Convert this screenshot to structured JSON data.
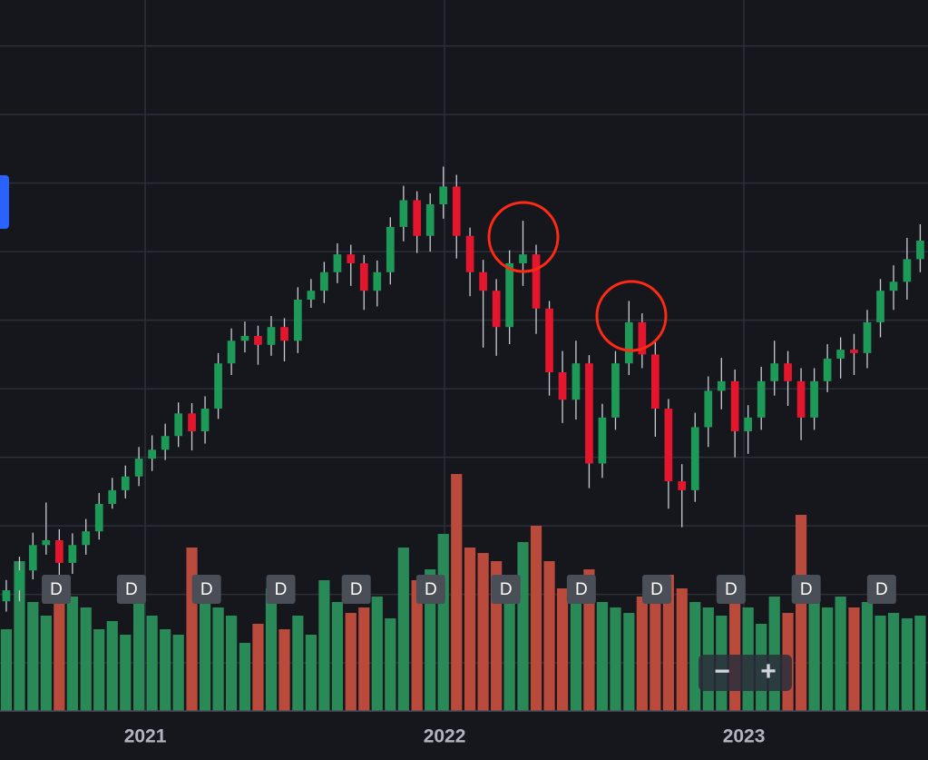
{
  "chart_data": {
    "type": "candlestick",
    "x": [
      2020.536,
      2020.58,
      2020.625,
      2020.669,
      2020.713,
      2020.757,
      2020.802,
      2020.846,
      2020.89,
      2020.934,
      2020.979,
      2021.023,
      2021.067,
      2021.111,
      2021.156,
      2021.2,
      2021.244,
      2021.288,
      2021.333,
      2021.377,
      2021.421,
      2021.465,
      2021.51,
      2021.554,
      2021.598,
      2021.642,
      2021.687,
      2021.731,
      2021.775,
      2021.819,
      2021.863,
      2021.908,
      2021.952,
      2021.996,
      2022.04,
      2022.085,
      2022.129,
      2022.173,
      2022.217,
      2022.262,
      2022.306,
      2022.35,
      2022.394,
      2022.439,
      2022.483,
      2022.527,
      2022.571,
      2022.616,
      2022.66,
      2022.704,
      2022.748,
      2022.793,
      2022.837,
      2022.881,
      2022.925,
      2022.97,
      2023.014,
      2023.058,
      2023.102,
      2023.147,
      2023.191,
      2023.235,
      2023.279,
      2023.323,
      2023.368,
      2023.412,
      2023.456,
      2023.5,
      2023.545,
      2023.589
    ],
    "open": [
      9.0,
      10.6,
      13.5,
      17.2,
      17.9,
      14.6,
      17.2,
      19.2,
      23.2,
      25.2,
      27.2,
      29.8,
      31.1,
      33.1,
      36.4,
      33.8,
      37.1,
      43.7,
      47.0,
      47.7,
      46.4,
      49.0,
      47.0,
      53.0,
      54.3,
      57.0,
      59.6,
      58.3,
      54.3,
      57.0,
      63.6,
      67.5,
      62.3,
      66.9,
      69.5,
      62.3,
      57.0,
      54.3,
      49.0,
      58.3,
      59.6,
      51.7,
      42.4,
      38.4,
      43.7,
      29.1,
      35.8,
      43.7,
      49.7,
      45.0,
      37.1,
      26.5,
      25.2,
      34.4,
      39.7,
      41.1,
      33.8,
      35.8,
      41.1,
      43.7,
      41.1,
      35.8,
      41.1,
      44.4,
      45.7,
      45.2,
      49.7,
      54.3,
      55.6,
      58.9
    ],
    "high": [
      12.1,
      15.5,
      19.0,
      23.4,
      19.5,
      18.9,
      21.0,
      24.8,
      27.0,
      28.8,
      31.5,
      33.2,
      34.9,
      38.0,
      37.9,
      38.9,
      45.2,
      48.8,
      49.8,
      49.2,
      50.6,
      50.3,
      54.8,
      56.0,
      58.5,
      61.2,
      61.0,
      59.5,
      58.7,
      65.0,
      69.6,
      68.8,
      68.5,
      72.4,
      71.2,
      63.5,
      58.8,
      56.0,
      60.2,
      64.5,
      61.0,
      52.8,
      45.5,
      47.0,
      44.9,
      37.8,
      45.5,
      52.8,
      51.0,
      46.8,
      38.5,
      29.0,
      36.5,
      41.8,
      44.5,
      42.8,
      37.6,
      43.2,
      47.0,
      45.5,
      43.0,
      43.0,
      46.5,
      47.5,
      48.0,
      51.5,
      56.0,
      58.0,
      62.0,
      64.0
    ],
    "low": [
      7.5,
      9.0,
      12.2,
      15.8,
      10.5,
      13.0,
      15.8,
      18.0,
      22.5,
      24.0,
      25.8,
      28.0,
      29.6,
      31.5,
      31.0,
      32.0,
      35.6,
      42.0,
      45.3,
      43.5,
      44.8,
      44.0,
      45.2,
      51.8,
      52.5,
      55.4,
      55.0,
      51.5,
      52.0,
      55.2,
      61.5,
      59.8,
      60.0,
      64.8,
      59.0,
      53.5,
      46.0,
      44.8,
      46.5,
      55.0,
      48.0,
      39.0,
      35.0,
      35.5,
      25.5,
      27.0,
      34.0,
      42.0,
      43.0,
      33.0,
      22.5,
      19.8,
      23.5,
      31.5,
      37.0,
      30.0,
      30.5,
      34.0,
      39.0,
      37.5,
      32.5,
      34.0,
      39.5,
      41.5,
      42.0,
      43.0,
      47.5,
      51.5,
      53.0,
      57.0
    ],
    "close": [
      10.6,
      13.5,
      17.2,
      17.9,
      14.6,
      17.2,
      19.2,
      23.2,
      25.2,
      27.2,
      29.8,
      31.1,
      33.1,
      36.4,
      33.8,
      37.1,
      43.7,
      47.0,
      47.7,
      46.4,
      49.0,
      47.0,
      53.0,
      54.3,
      57.0,
      59.6,
      58.3,
      54.3,
      57.0,
      63.6,
      67.5,
      62.3,
      66.9,
      69.5,
      62.3,
      57.0,
      54.3,
      49.0,
      58.3,
      59.6,
      51.7,
      42.4,
      38.4,
      43.7,
      29.1,
      35.8,
      43.7,
      49.7,
      45.0,
      37.1,
      26.5,
      25.2,
      34.4,
      39.7,
      41.1,
      33.8,
      35.8,
      41.1,
      43.7,
      41.1,
      35.8,
      41.1,
      44.4,
      45.7,
      45.2,
      49.7,
      54.3,
      55.6,
      58.9,
      61.6
    ],
    "volume": [
      30,
      55,
      40,
      35,
      45,
      42,
      38,
      30,
      33,
      28,
      40,
      35,
      30,
      28,
      60,
      42,
      38,
      35,
      25,
      32,
      45,
      30,
      35,
      28,
      48,
      40,
      36,
      38,
      42,
      34,
      60,
      48,
      52,
      65,
      87,
      60,
      58,
      55,
      50,
      62,
      68,
      55,
      45,
      50,
      52,
      40,
      38,
      36,
      42,
      48,
      50,
      45,
      40,
      38,
      35,
      44,
      38,
      32,
      42,
      36,
      72,
      40,
      38,
      42,
      38,
      40,
      35,
      36,
      34,
      35
    ],
    "y2lim": [
      0,
      100
    ],
    "up_color": "#1e9a58",
    "down_color": "#e3162d",
    "wick_color": "#c9ccd4",
    "volume_up_color": "#2a8a57",
    "volume_down_color": "#b94a3c",
    "xlim": [
      2020.515,
      2023.615
    ],
    "xticks": [
      2021,
      2022,
      2023
    ],
    "ylim": [
      -7.0,
      96.7
    ],
    "yticks": [
      0,
      10,
      20,
      30,
      40,
      50,
      60,
      70,
      80,
      90
    ],
    "grid": true,
    "event_markers": [
      {
        "x": 2020.703,
        "label": "D"
      },
      {
        "x": 2020.954,
        "label": "D"
      },
      {
        "x": 2021.205,
        "label": "D"
      },
      {
        "x": 2021.453,
        "label": "D"
      },
      {
        "x": 2021.705,
        "label": "D"
      },
      {
        "x": 2021.954,
        "label": "D"
      },
      {
        "x": 2022.205,
        "label": "D"
      },
      {
        "x": 2022.457,
        "label": "D"
      },
      {
        "x": 2022.709,
        "label": "D"
      },
      {
        "x": 2022.957,
        "label": "D"
      },
      {
        "x": 2023.208,
        "label": "D"
      },
      {
        "x": 2023.46,
        "label": "D"
      }
    ]
  },
  "controls": {
    "zoom_out": "−",
    "zoom_in": "+"
  }
}
